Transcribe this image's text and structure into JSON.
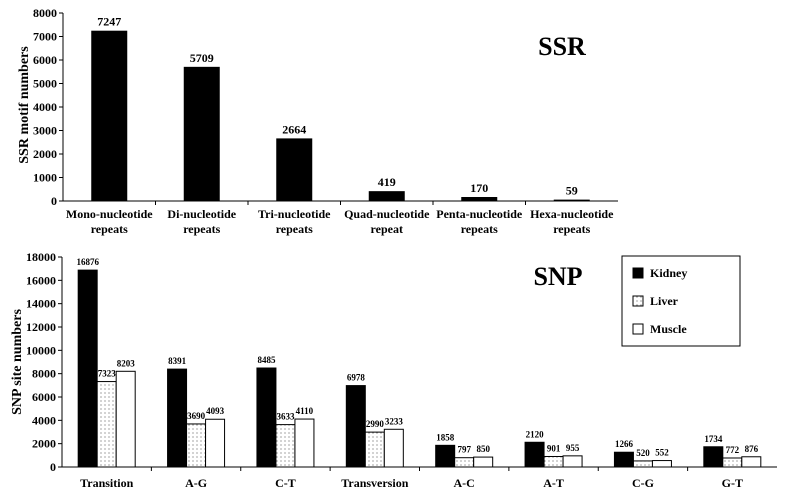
{
  "chart_data": [
    {
      "type": "bar",
      "title": "SSR",
      "xlabel": "",
      "ylabel": "SSR motif numbers",
      "ylim": [
        0,
        8000
      ],
      "yticks": [
        "0",
        "1000",
        "2000",
        "3000",
        "4000",
        "5000",
        "6000",
        "7000",
        "8000"
      ],
      "categories": [
        [
          "Mono-nucleotide",
          "repeats"
        ],
        [
          "Di-nucleotide",
          "repeats"
        ],
        [
          "Tri-nucleotide",
          "repeats"
        ],
        [
          "Quad-nucleotide",
          "repeat"
        ],
        [
          "Penta-nucleotide",
          "repeats"
        ],
        [
          "Hexa-nucleotide",
          "repeats"
        ]
      ],
      "values": [
        7247,
        5709,
        2664,
        419,
        170,
        59
      ],
      "data_labels": [
        "7247",
        "5709",
        "2664",
        "419",
        "170",
        "59"
      ],
      "grid": false,
      "colors": {
        "bar": "#000000"
      }
    },
    {
      "type": "bar",
      "title": "SNP",
      "xlabel": "",
      "ylabel": "SNP site numbers",
      "ylim": [
        0,
        18000
      ],
      "yticks": [
        "0",
        "2000",
        "4000",
        "6000",
        "8000",
        "10000",
        "12000",
        "14000",
        "16000",
        "18000"
      ],
      "categories": [
        "Transition",
        "A-G",
        "C-T",
        "Transversion",
        "A-C",
        "A-T",
        "C-G",
        "G-T"
      ],
      "series": [
        {
          "name": "Kidney",
          "values": [
            16876,
            8391,
            8485,
            6978,
            1858,
            2120,
            1266,
            1734
          ],
          "data_labels": [
            "16876",
            "8391",
            "8485",
            "6978",
            "1858",
            "2120",
            "1266",
            "1734"
          ],
          "fill": "solid"
        },
        {
          "name": "Liver",
          "values": [
            7323,
            3690,
            3633,
            2990,
            797,
            901,
            520,
            772
          ],
          "data_labels": [
            "7323",
            "3690",
            "3633",
            "2990",
            "797",
            "901",
            "520",
            "772"
          ],
          "fill": "dotted"
        },
        {
          "name": "Muscle",
          "values": [
            8203,
            4093,
            4110,
            3233,
            850,
            955,
            552,
            876
          ],
          "data_labels": [
            "8203",
            "4093",
            "4110",
            "3233",
            "850",
            "955",
            "552",
            "876"
          ],
          "fill": "white"
        }
      ],
      "legend": "top-right",
      "grid": false,
      "colors": {
        "kidney": "#000000",
        "liver": "#ffffff",
        "muscle": "#ffffff",
        "dots": "#666666"
      }
    }
  ]
}
